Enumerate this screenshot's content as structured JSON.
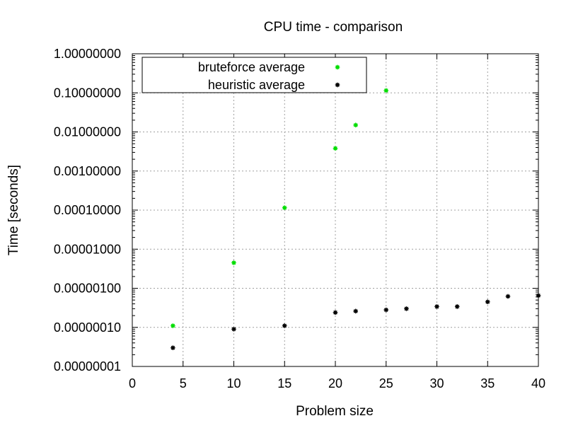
{
  "chart_data": {
    "type": "scatter",
    "title": "CPU time - comparison",
    "xlabel": "Problem size",
    "ylabel": "Time [seconds]",
    "xlim": [
      0,
      40
    ],
    "ylim": [
      1e-08,
      1
    ],
    "yscale": "log",
    "grid": true,
    "legend_position": "top-left",
    "x_ticks": [
      0,
      5,
      10,
      15,
      20,
      25,
      30,
      35,
      40
    ],
    "x_tick_labels": [
      "0",
      "5",
      "10",
      "15",
      "20",
      "25",
      "30",
      "35",
      "40"
    ],
    "y_ticks": [
      1e-08,
      1e-07,
      1e-06,
      1e-05,
      0.0001,
      0.001,
      0.01,
      0.1,
      1
    ],
    "y_tick_labels": [
      "0.00000001",
      "0.00000010",
      "0.00000100",
      "0.00001000",
      "0.00010000",
      "0.00100000",
      "0.01000000",
      "0.10000000",
      "1.00000000"
    ],
    "series": [
      {
        "name": "bruteforce average",
        "color": "#00dd00",
        "points": [
          [
            4,
            1.1e-07
          ],
          [
            10,
            4.5e-06
          ],
          [
            15,
            0.000115
          ],
          [
            20,
            0.0038
          ],
          [
            22,
            0.015
          ],
          [
            25,
            0.115
          ]
        ]
      },
      {
        "name": "heuristic average",
        "color": "#000000",
        "points": [
          [
            4,
            3e-08
          ],
          [
            10,
            9e-08
          ],
          [
            15,
            1.1e-07
          ],
          [
            20,
            2.4e-07
          ],
          [
            22,
            2.6e-07
          ],
          [
            25,
            2.8e-07
          ],
          [
            27,
            3e-07
          ],
          [
            30,
            3.4e-07
          ],
          [
            32,
            3.4e-07
          ],
          [
            35,
            4.5e-07
          ],
          [
            37,
            6.2e-07
          ],
          [
            40,
            6.5e-07
          ]
        ]
      }
    ]
  }
}
